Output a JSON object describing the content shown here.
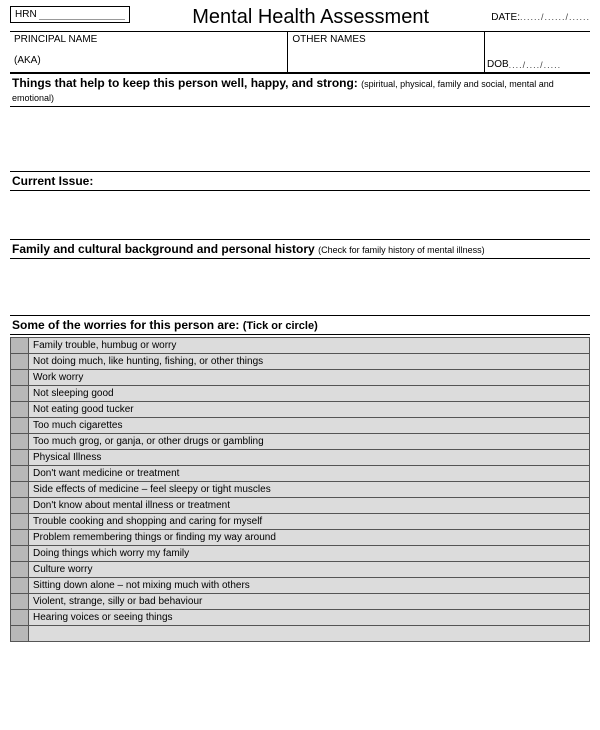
{
  "header": {
    "hrn_label": "HRN",
    "title": "Mental Health Assessment",
    "date_label": "DATE:",
    "date_placeholder": "....../....../......"
  },
  "names": {
    "principal_label": "PRINCIPAL NAME",
    "aka_label": "(AKA)",
    "other_label": "OTHER NAMES",
    "dob_label": "DOB",
    "dob_placeholder": "..../..../....."
  },
  "sections": {
    "wellness": {
      "title": "Things that help to keep this person well, happy, and strong:",
      "hint": "(spiritual, physical, family and social, mental and emotional)"
    },
    "current_issue": {
      "title": "Current Issue:"
    },
    "history": {
      "title": "Family and cultural background and personal history",
      "hint": "(Check for family history of mental illness)"
    },
    "worries": {
      "title": "Some of the worries for this person are:",
      "hint": "(Tick or circle)"
    }
  },
  "worries_items": [
    "Family trouble, humbug or worry",
    "Not doing much, like hunting, fishing, or other things",
    "Work worry",
    "Not sleeping good",
    "Not eating good tucker",
    "Too much cigarettes",
    "Too much grog, or ganja, or other drugs or gambling",
    "Physical Illness",
    "Don't want medicine or treatment",
    "Side effects of medicine – feel sleepy or tight muscles",
    "Don't know about mental illness or treatment",
    "Trouble cooking and shopping and caring for myself",
    "Problem remembering things or finding my way around",
    "Doing things which worry my family",
    "Culture worry",
    "Sitting down alone – not mixing much with others",
    "Violent, strange, silly or bad behaviour",
    "Hearing voices or seeing things"
  ],
  "styling": {
    "page_bg": "#ffffff",
    "cell_bg": "#dcdcdc",
    "checkbox_bg": "#b8b8b8",
    "border_color": "#000000",
    "table_border": "#555555",
    "title_fontsize": 20,
    "section_fontsize": 12,
    "hint_fontsize": 9,
    "cell_fontsize": 10
  }
}
